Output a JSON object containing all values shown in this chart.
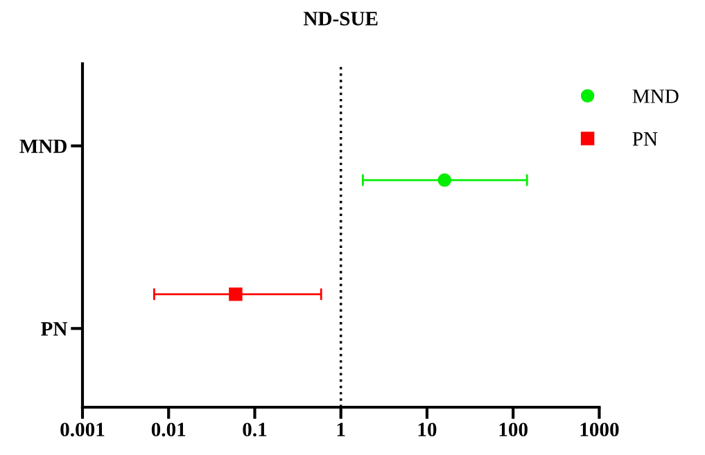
{
  "chart_data": {
    "type": "scatter",
    "orientation": "horizontal",
    "title": "ND-SUE",
    "categories": [
      "MND",
      "PN"
    ],
    "series": [
      {
        "name": "MND",
        "color": "#00ee00",
        "marker": "circle",
        "values": [
          16,
          null
        ],
        "errors": [
          [
            1.8,
            145
          ],
          null
        ]
      },
      {
        "name": "PN",
        "color": "#ff0000",
        "marker": "square",
        "values": [
          null,
          0.06
        ],
        "errors": [
          null,
          [
            0.0068,
            0.59
          ]
        ]
      }
    ],
    "log": "x",
    "xlim": [
      0.001,
      1000
    ],
    "xticks": [
      0.001,
      0.01,
      0.1,
      1,
      10,
      100,
      1000
    ],
    "ref_lines": [
      {
        "axis": "x",
        "value": 1,
        "color": "#000000",
        "line_style": "dotted"
      }
    ],
    "grid": false,
    "legend": "top right"
  }
}
